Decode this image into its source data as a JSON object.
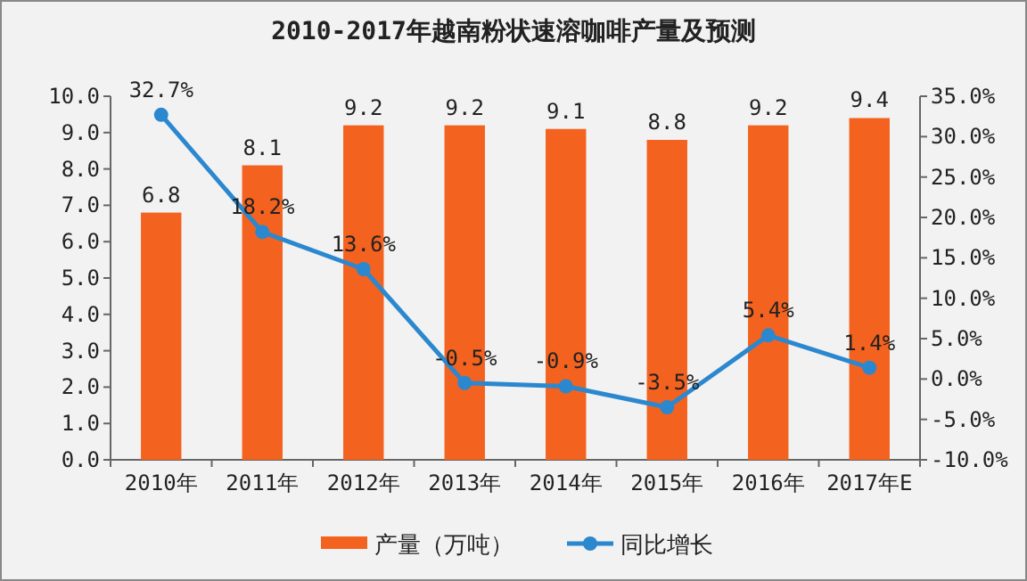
{
  "chart_data": {
    "type": "bar",
    "title": "2010-2017年越南粉状速溶咖啡产量及预测",
    "categories": [
      "2010年",
      "2011年",
      "2012年",
      "2013年",
      "2014年",
      "2015年",
      "2016年",
      "2017年E"
    ],
    "series": [
      {
        "name": "产量（万吨）",
        "color": "#f4621f",
        "values": [
          6.8,
          8.1,
          9.2,
          9.2,
          9.1,
          8.8,
          9.2,
          9.4
        ]
      },
      {
        "name": "同比增长",
        "type": "line",
        "axis": "y2",
        "color": "#2b88cf",
        "marker": "circle",
        "values": [
          32.7,
          18.2,
          13.6,
          -0.5,
          -0.9,
          -3.5,
          5.4,
          1.4
        ],
        "value_labels": [
          "32.7%",
          "18.2%",
          "13.6%",
          "-0.5%",
          "-0.9%",
          "-3.5%",
          "5.4%",
          "1.4%"
        ]
      }
    ],
    "ylim": [
      0,
      10
    ],
    "yticks": [
      {
        "value": 0,
        "label": "0.0"
      },
      {
        "value": 1,
        "label": "1.0"
      },
      {
        "value": 2,
        "label": "2.0"
      },
      {
        "value": 3,
        "label": "3.0"
      },
      {
        "value": 4,
        "label": "4.0"
      },
      {
        "value": 5,
        "label": "5.0"
      },
      {
        "value": 6,
        "label": "6.0"
      },
      {
        "value": 7,
        "label": "7.0"
      },
      {
        "value": 8,
        "label": "8.0"
      },
      {
        "value": 9,
        "label": "9.0"
      },
      {
        "value": 10,
        "label": "10.0"
      }
    ],
    "y2lim": [
      -10,
      35
    ],
    "y2ticks": [
      {
        "value": -10,
        "label": "-10.0%"
      },
      {
        "value": -5,
        "label": "-5.0%"
      },
      {
        "value": 0,
        "label": "0.0%"
      },
      {
        "value": 5,
        "label": "5.0%"
      },
      {
        "value": 10,
        "label": "10.0%"
      },
      {
        "value": 15,
        "label": "15.0%"
      },
      {
        "value": 20,
        "label": "20.0%"
      },
      {
        "value": 25,
        "label": "25.0%"
      },
      {
        "value": 30,
        "label": "30.0%"
      },
      {
        "value": 35,
        "label": "35.0%"
      }
    ],
    "data_labels": true,
    "legend": "bottom",
    "grid": false
  }
}
